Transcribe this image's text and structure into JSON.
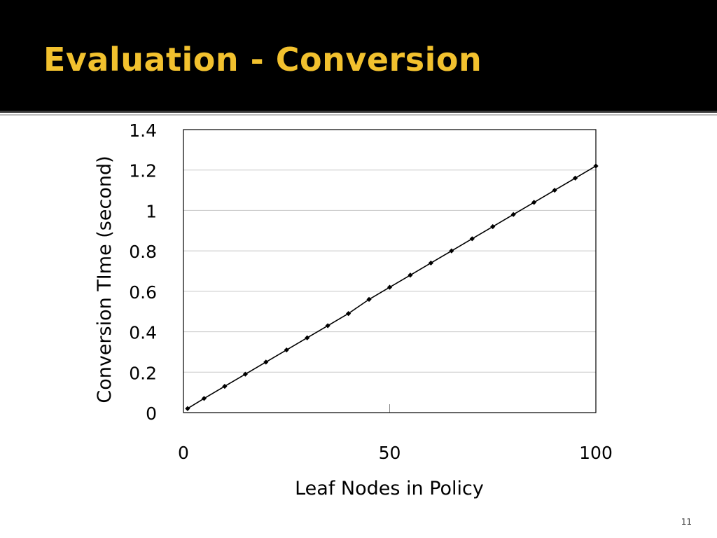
{
  "slide": {
    "title": "Evaluation - Conversion",
    "number": "11",
    "title_color": "#f2c12e",
    "header_color": "#000000"
  },
  "chart_data": {
    "type": "line",
    "xlabel": "Leaf Nodes in Policy",
    "ylabel": "Conversion TIme (second)",
    "xlim": [
      0,
      100
    ],
    "ylim": [
      0,
      1.4
    ],
    "xticks": [
      0,
      50,
      100
    ],
    "xtick_labels": [
      "0",
      "50",
      "100"
    ],
    "yticks": [
      0,
      0.2,
      0.4,
      0.6,
      0.8,
      1,
      1.2,
      1.4
    ],
    "ytick_labels": [
      "0",
      "0.2",
      "0.4",
      "0.6",
      "0.8",
      "1",
      "1.2",
      "1.4"
    ],
    "grid": "horizontal",
    "legend": "none",
    "marker": "diamond",
    "line_color": "#000000",
    "series": [
      {
        "x": [
          1,
          5,
          10,
          15,
          20,
          25,
          30,
          35,
          40,
          45,
          50,
          55,
          60,
          65,
          70,
          75,
          80,
          85,
          90,
          95,
          100
        ],
        "values": [
          0.02,
          0.07,
          0.13,
          0.19,
          0.25,
          0.31,
          0.37,
          0.43,
          0.49,
          0.56,
          0.62,
          0.68,
          0.74,
          0.8,
          0.86,
          0.92,
          0.98,
          1.04,
          1.1,
          1.16,
          1.22
        ]
      }
    ]
  }
}
